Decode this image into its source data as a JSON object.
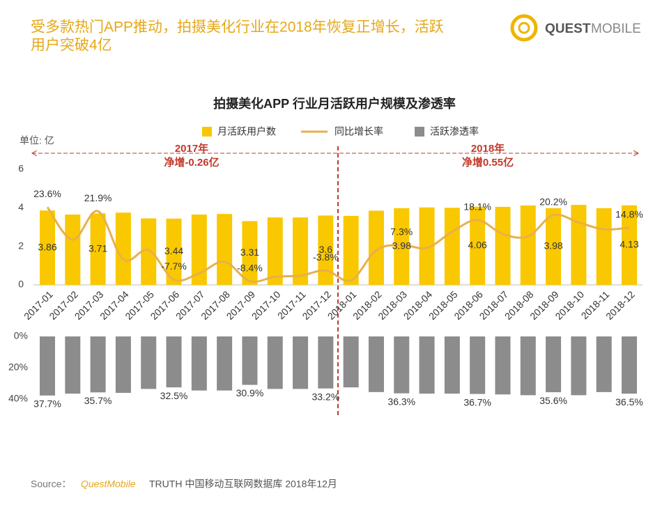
{
  "header": {
    "title_lines": [
      "受多款热门APP推动，拍摄美化行业在2018年恢复正增长，活跃",
      "用户突破4亿"
    ],
    "logo_a": "QUEST",
    "logo_b": "MOBILE"
  },
  "chart_data": [
    {
      "type": "bar",
      "title": "拍摄美化APP 行业月活跃用户规模及渗透率",
      "unit_label": "单位: 亿",
      "categories": [
        "2017-01",
        "2017-02",
        "2017-03",
        "2017-04",
        "2017-05",
        "2017-06",
        "2017-07",
        "2017-08",
        "2017-09",
        "2017-10",
        "2017-11",
        "2017-12",
        "2018-01",
        "2018-02",
        "2018-03",
        "2018-04",
        "2018-05",
        "2018-06",
        "2018-07",
        "2018-08",
        "2018-09",
        "2018-10",
        "2018-11",
        "2018-12"
      ],
      "series": [
        {
          "name": "月活跃用户数",
          "color": "#f9c800",
          "values": [
            3.86,
            3.65,
            3.71,
            3.75,
            3.45,
            3.44,
            3.65,
            3.68,
            3.31,
            3.5,
            3.5,
            3.6,
            3.58,
            3.85,
            3.98,
            4.02,
            4.0,
            4.06,
            4.05,
            4.12,
            3.98,
            4.15,
            3.98,
            4.13
          ]
        },
        {
          "name": "同比增长率",
          "type": "line",
          "axis": "y2",
          "color": "#e8b04a",
          "values": [
            23.6,
            9.5,
            21.9,
            1.0,
            5.0,
            -7.7,
            -5.0,
            0.0,
            -8.4,
            -6.5,
            -6.0,
            -3.8,
            -8.0,
            5.0,
            7.3,
            6.0,
            13.0,
            18.1,
            12.0,
            11.0,
            20.2,
            17.0,
            14.0,
            14.8
          ],
          "value_labels": [
            "23.6%",
            null,
            "21.9%",
            null,
            null,
            "-7.7%",
            null,
            null,
            "-8.4%",
            null,
            null,
            "-3.8%",
            null,
            null,
            "7.3%",
            null,
            null,
            "18.1%",
            null,
            null,
            "20.2%",
            null,
            null,
            "14.8%"
          ]
        }
      ],
      "ylim": [
        0,
        6
      ],
      "yticks": [
        0,
        2,
        4,
        6
      ],
      "y2lim": [
        -10,
        40
      ],
      "annotations": [
        [
          "2017年",
          "净增-0.26亿"
        ],
        [
          "2018年",
          "净增0.55亿"
        ]
      ]
    },
    {
      "type": "bar",
      "inverted": true,
      "series": [
        {
          "name": "活跃渗透率",
          "color": "#8c8c8c",
          "values": [
            37.7,
            36.5,
            35.7,
            36.0,
            33.5,
            32.5,
            34.5,
            34.5,
            30.9,
            33.5,
            33.5,
            33.2,
            32.5,
            35.5,
            36.3,
            36.5,
            36.5,
            36.7,
            37.0,
            37.5,
            35.6,
            37.5,
            35.5,
            36.5
          ],
          "value_labels": [
            "37.7%",
            null,
            "35.7%",
            null,
            null,
            "32.5%",
            null,
            null,
            "30.9%",
            null,
            null,
            "33.2%",
            null,
            null,
            "36.3%",
            null,
            null,
            "36.7%",
            null,
            null,
            "35.6%",
            null,
            null,
            "36.5%"
          ]
        }
      ],
      "ylim": [
        0,
        40
      ],
      "yticks": [
        {
          "value": 0,
          "label": "0%"
        },
        {
          "value": 20,
          "label": "20%"
        },
        {
          "value": 40,
          "label": "40%"
        }
      ]
    }
  ],
  "source": {
    "label": "Source：",
    "brand": "QuestMobile",
    "text": "TRUTH 中国移动互联网数据库 2018年12月"
  }
}
